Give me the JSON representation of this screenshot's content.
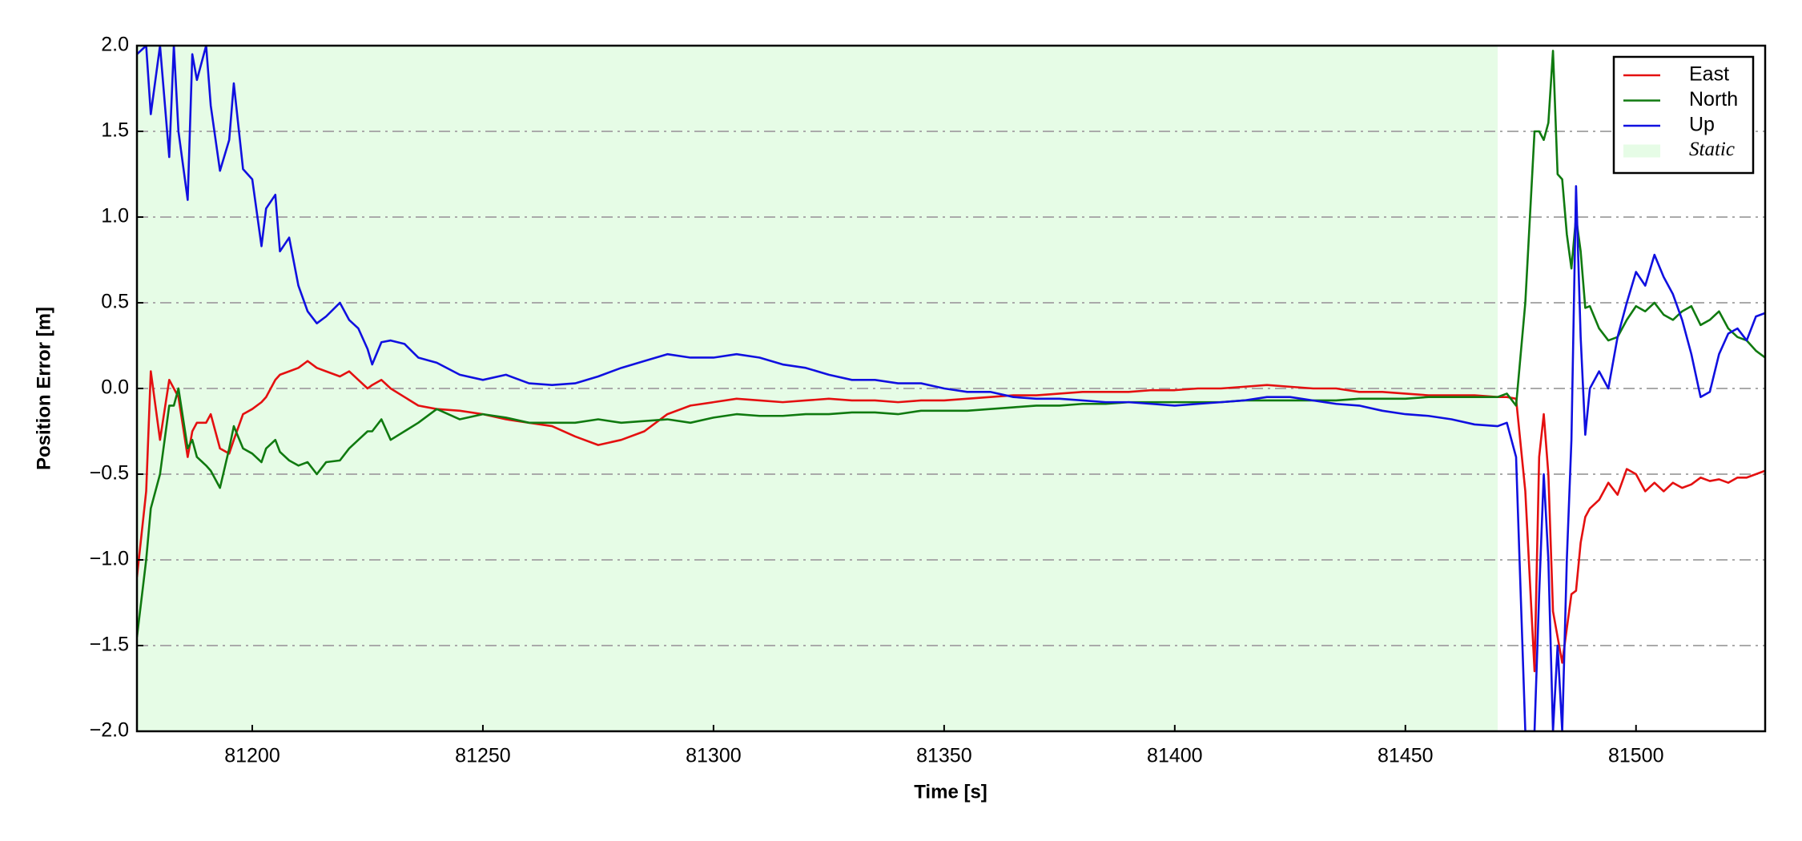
{
  "chart_data": {
    "type": "line",
    "xlabel": "Time [s]",
    "ylabel": "Position Error [m]",
    "x": [
      81175,
      81177,
      81178,
      81180,
      81182,
      81183,
      81184,
      81186,
      81187,
      81188,
      81190,
      81191,
      81193,
      81195,
      81196,
      81198,
      81200,
      81202,
      81203,
      81205,
      81206,
      81208,
      81210,
      81212,
      81214,
      81216,
      81219,
      81221,
      81223,
      81225,
      81226,
      81228,
      81230,
      81233,
      81236,
      81240,
      81245,
      81250,
      81255,
      81260,
      81265,
      81270,
      81275,
      81280,
      81285,
      81290,
      81295,
      81300,
      81305,
      81310,
      81315,
      81320,
      81325,
      81330,
      81335,
      81340,
      81345,
      81350,
      81355,
      81360,
      81365,
      81370,
      81375,
      81380,
      81385,
      81390,
      81395,
      81400,
      81405,
      81410,
      81415,
      81420,
      81425,
      81430,
      81435,
      81440,
      81445,
      81450,
      81455,
      81460,
      81465,
      81470,
      81472,
      81474,
      81476,
      81478,
      81479,
      81480,
      81481,
      81482,
      81483,
      81484,
      81485,
      81486,
      81487,
      81488,
      81489,
      81490,
      81492,
      81494,
      81496,
      81498,
      81500,
      81502,
      81504,
      81506,
      81508,
      81510,
      81512,
      81514,
      81516,
      81518,
      81520,
      81522,
      81524,
      81526,
      81528
    ],
    "series": [
      {
        "name": "East",
        "color": "#e41010",
        "values": [
          -1.1,
          -0.6,
          0.1,
          -0.3,
          0.05,
          0.0,
          -0.05,
          -0.4,
          -0.25,
          -0.2,
          -0.2,
          -0.15,
          -0.35,
          -0.38,
          -0.3,
          -0.15,
          -0.12,
          -0.08,
          -0.05,
          0.05,
          0.08,
          0.1,
          0.12,
          0.16,
          0.12,
          0.1,
          0.07,
          0.1,
          0.05,
          0.0,
          0.02,
          0.05,
          0.0,
          -0.05,
          -0.1,
          -0.12,
          -0.13,
          -0.15,
          -0.18,
          -0.2,
          -0.22,
          -0.28,
          -0.33,
          -0.3,
          -0.25,
          -0.15,
          -0.1,
          -0.08,
          -0.06,
          -0.07,
          -0.08,
          -0.07,
          -0.06,
          -0.07,
          -0.07,
          -0.08,
          -0.07,
          -0.07,
          -0.06,
          -0.05,
          -0.04,
          -0.04,
          -0.03,
          -0.02,
          -0.02,
          -0.02,
          -0.01,
          -0.01,
          0.0,
          0.0,
          0.01,
          0.02,
          0.01,
          0.0,
          0.0,
          -0.02,
          -0.02,
          -0.03,
          -0.04,
          -0.04,
          -0.04,
          -0.05,
          -0.05,
          -0.06,
          -0.6,
          -1.65,
          -0.4,
          -0.15,
          -0.5,
          -1.3,
          -1.45,
          -1.6,
          -1.4,
          -1.2,
          -1.18,
          -0.9,
          -0.75,
          -0.7,
          -0.65,
          -0.55,
          -0.62,
          -0.47,
          -0.5,
          -0.6,
          -0.55,
          -0.6,
          -0.55,
          -0.58,
          -0.56,
          -0.52,
          -0.54,
          -0.53,
          -0.55,
          -0.52,
          -0.52,
          -0.5,
          -0.48
        ]
      },
      {
        "name": "North",
        "color": "#107a10",
        "values": [
          -1.45,
          -1.0,
          -0.7,
          -0.5,
          -0.1,
          -0.1,
          0.0,
          -0.35,
          -0.3,
          -0.4,
          -0.45,
          -0.48,
          -0.58,
          -0.35,
          -0.22,
          -0.35,
          -0.38,
          -0.43,
          -0.35,
          -0.3,
          -0.37,
          -0.42,
          -0.45,
          -0.43,
          -0.5,
          -0.43,
          -0.42,
          -0.35,
          -0.3,
          -0.25,
          -0.25,
          -0.18,
          -0.3,
          -0.25,
          -0.2,
          -0.12,
          -0.18,
          -0.15,
          -0.17,
          -0.2,
          -0.2,
          -0.2,
          -0.18,
          -0.2,
          -0.19,
          -0.18,
          -0.2,
          -0.17,
          -0.15,
          -0.16,
          -0.16,
          -0.15,
          -0.15,
          -0.14,
          -0.14,
          -0.15,
          -0.13,
          -0.13,
          -0.13,
          -0.12,
          -0.11,
          -0.1,
          -0.1,
          -0.09,
          -0.09,
          -0.08,
          -0.08,
          -0.08,
          -0.08,
          -0.08,
          -0.07,
          -0.07,
          -0.07,
          -0.07,
          -0.07,
          -0.06,
          -0.06,
          -0.06,
          -0.05,
          -0.05,
          -0.05,
          -0.05,
          -0.03,
          -0.1,
          0.5,
          1.5,
          1.5,
          1.45,
          1.55,
          1.97,
          1.25,
          1.22,
          0.9,
          0.7,
          1.0,
          0.8,
          0.47,
          0.48,
          0.35,
          0.28,
          0.3,
          0.4,
          0.48,
          0.45,
          0.5,
          0.43,
          0.4,
          0.45,
          0.48,
          0.37,
          0.4,
          0.45,
          0.35,
          0.3,
          0.28,
          0.22,
          0.18
        ]
      },
      {
        "name": "Up",
        "color": "#1010e0",
        "values": [
          1.95,
          2.0,
          1.6,
          2.0,
          1.35,
          2.0,
          1.5,
          1.1,
          1.95,
          1.8,
          2.0,
          1.65,
          1.27,
          1.45,
          1.78,
          1.28,
          1.22,
          0.83,
          1.05,
          1.13,
          0.8,
          0.88,
          0.6,
          0.45,
          0.38,
          0.42,
          0.5,
          0.4,
          0.35,
          0.23,
          0.14,
          0.27,
          0.28,
          0.26,
          0.18,
          0.15,
          0.08,
          0.05,
          0.08,
          0.03,
          0.02,
          0.03,
          0.07,
          0.12,
          0.16,
          0.2,
          0.18,
          0.18,
          0.2,
          0.18,
          0.14,
          0.12,
          0.08,
          0.05,
          0.05,
          0.03,
          0.03,
          0.0,
          -0.02,
          -0.02,
          -0.05,
          -0.06,
          -0.06,
          -0.07,
          -0.08,
          -0.08,
          -0.09,
          -0.1,
          -0.09,
          -0.08,
          -0.07,
          -0.05,
          -0.05,
          -0.07,
          -0.09,
          -0.1,
          -0.13,
          -0.15,
          -0.16,
          -0.18,
          -0.21,
          -0.22,
          -0.2,
          -0.4,
          -2.0,
          -2.0,
          -1.2,
          -0.5,
          -1.0,
          -2.0,
          -1.5,
          -2.0,
          -1.0,
          -0.3,
          1.18,
          0.3,
          -0.27,
          0.0,
          0.1,
          0.0,
          0.3,
          0.5,
          0.68,
          0.6,
          0.78,
          0.65,
          0.55,
          0.4,
          0.2,
          -0.05,
          -0.02,
          0.2,
          0.32,
          0.35,
          0.28,
          0.42,
          0.44
        ]
      }
    ],
    "shade": {
      "name": "Static",
      "color": "#e6fce6",
      "span": [
        81175,
        81470
      ]
    },
    "xlim": [
      81175,
      81528
    ],
    "xticks": [
      81200,
      81250,
      81300,
      81350,
      81400,
      81450,
      81500
    ],
    "ylim": [
      -2,
      2
    ],
    "yticks": [
      {
        "value": -2,
        "label": "−2.0"
      },
      {
        "value": -1.5,
        "label": "−1.5"
      },
      {
        "value": -1,
        "label": "−1.0"
      },
      {
        "value": -0.5,
        "label": "−0.5"
      },
      {
        "value": 0,
        "label": "0.0"
      },
      {
        "value": 0.5,
        "label": "0.5"
      },
      {
        "value": 1,
        "label": "1.0"
      },
      {
        "value": 1.5,
        "label": "1.5"
      },
      {
        "value": 2,
        "label": "2.0"
      }
    ],
    "grid": true,
    "legend": "upper right"
  }
}
